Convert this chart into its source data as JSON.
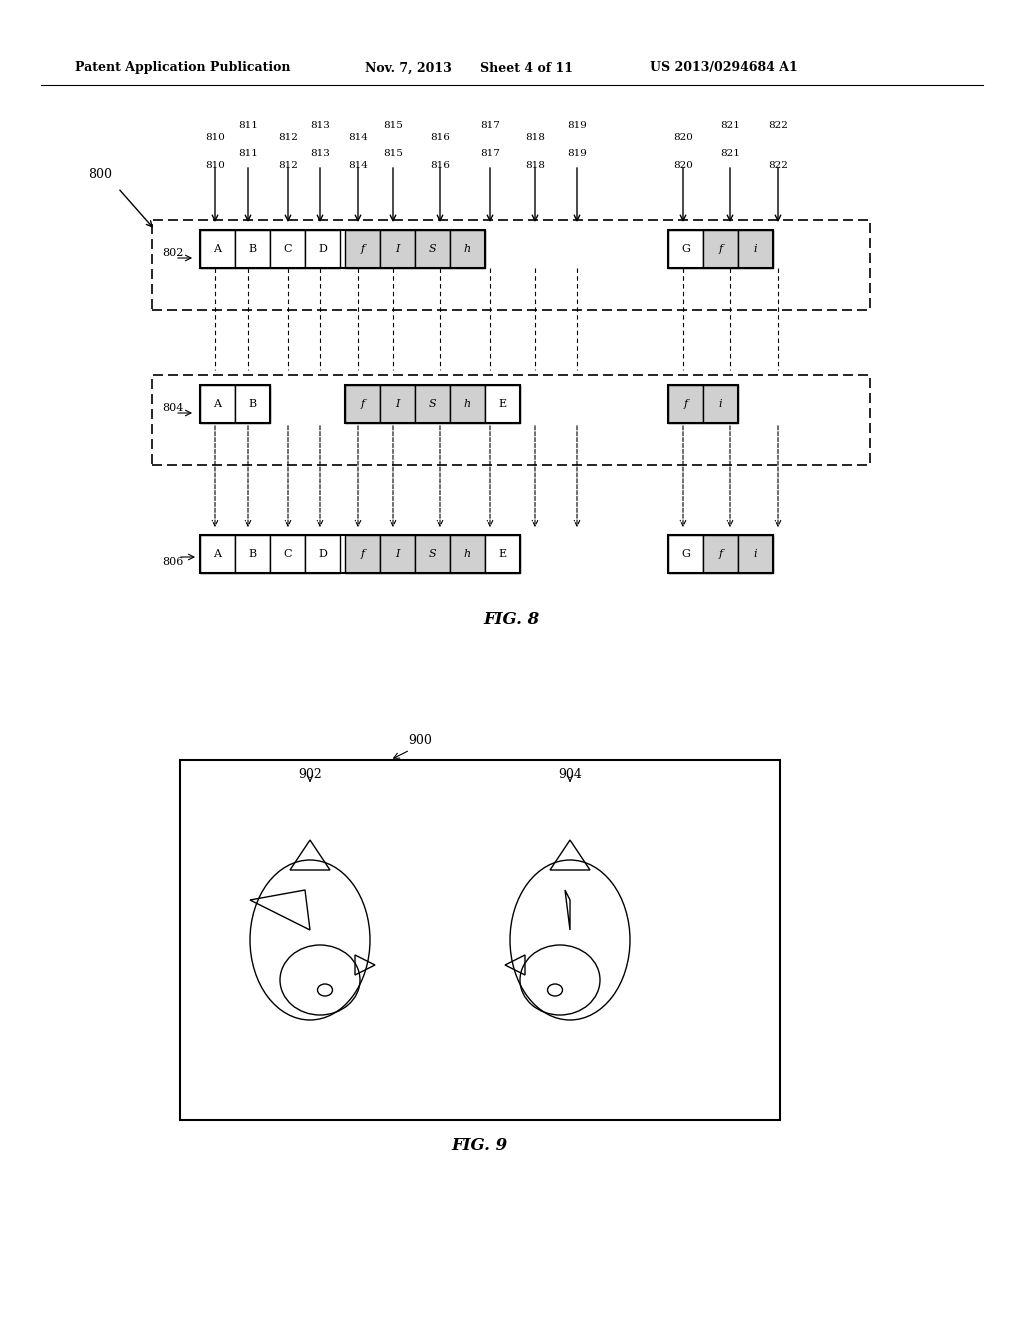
{
  "bg_color": "#ffffff",
  "header_text": "Patent Application Publication",
  "header_date": "Nov. 7, 2013",
  "header_sheet": "Sheet 4 of 11",
  "header_patent": "US 2013/0294684 A1",
  "fig8_label": "FIG. 8",
  "fig9_label": "FIG. 9",
  "row802_label": "802",
  "row804_label": "804",
  "row806_label": "806",
  "fig800_label": "800",
  "arrow_labels_top": [
    "810",
    "811",
    "812",
    "813",
    "814",
    "815",
    "816",
    "817",
    "818",
    "819",
    "820",
    "821",
    "822"
  ],
  "row802_cells_left": [
    "A",
    "B",
    "C",
    "D"
  ],
  "row802_cells_mid_shaded": [
    "f",
    "I",
    "S",
    "h"
  ],
  "row802_cells_right": [
    "G",
    "f",
    "i"
  ],
  "row804_cells_left": [
    "A",
    "B"
  ],
  "row804_cells_mid_shaded": [
    "f",
    "I",
    "S",
    "h",
    "E"
  ],
  "row804_cells_right_shaded": [
    "f",
    "i"
  ],
  "row806_cells_left": [
    "A",
    "B",
    "C",
    "D"
  ],
  "row806_cells_mid_shaded": [
    "f",
    "I",
    "S",
    "h",
    "E"
  ],
  "row806_cells_right": [
    "G",
    "f",
    "i"
  ],
  "fig9_label_900": "900",
  "fig9_label_902": "902",
  "fig9_label_904": "904"
}
